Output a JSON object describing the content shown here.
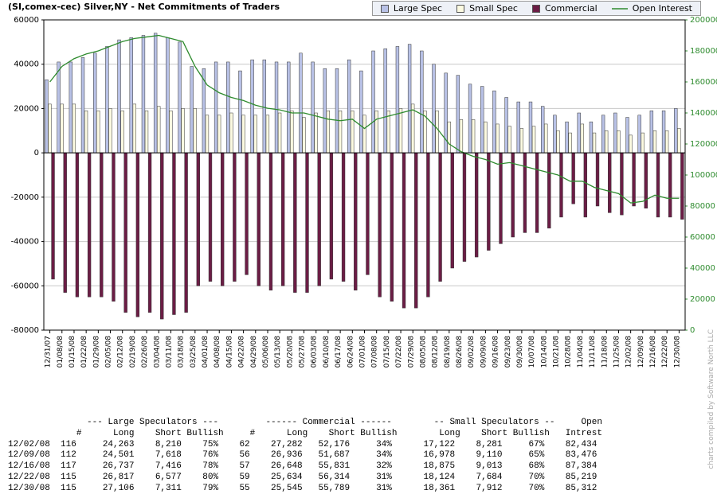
{
  "chart": {
    "title": "(SI,comex-cec) Silver,NY - Net Commitments of Traders",
    "credit": "charts compiled by\nSoftware North LLC",
    "legend_bg": "#eef1f7",
    "legend_border": "#999999",
    "plot_bg": "#ffffff",
    "plot_border": "#000000",
    "left_axis": {
      "color": "#000000",
      "min": -80000,
      "max": 60000,
      "step": 20000
    },
    "right_axis": {
      "color": "#2e8b2e",
      "min": 0,
      "max": 200000,
      "step": 20000
    },
    "bar_group_width": 0.8,
    "bar_border": "#333333",
    "grid_color": "#c8c8c8",
    "series": [
      {
        "key": "large_spec",
        "label": "Large Spec",
        "type": "bar",
        "color": "#b8c1e6",
        "axis": "left"
      },
      {
        "key": "small_spec",
        "label": "Small Spec",
        "type": "bar",
        "color": "#fcfae1",
        "axis": "left"
      },
      {
        "key": "commercial",
        "label": "Commercial",
        "type": "bar",
        "color": "#6b1d45",
        "axis": "left"
      },
      {
        "key": "open_interest",
        "label": "Open Interest",
        "type": "line",
        "color": "#2e8b2e",
        "axis": "right"
      }
    ],
    "x_labels": [
      "12/31/07",
      "01/08/08",
      "01/15/08",
      "01/22/08",
      "01/29/08",
      "02/05/08",
      "02/12/08",
      "02/19/08",
      "02/26/08",
      "03/04/08",
      "03/11/08",
      "03/18/08",
      "03/25/08",
      "04/01/08",
      "04/08/08",
      "04/15/08",
      "04/22/08",
      "04/29/08",
      "05/06/08",
      "05/13/08",
      "05/20/08",
      "05/27/08",
      "06/03/08",
      "06/10/08",
      "06/17/08",
      "06/24/08",
      "07/01/08",
      "07/08/08",
      "07/15/08",
      "07/22/08",
      "07/29/08",
      "08/05/08",
      "08/12/08",
      "08/19/08",
      "08/26/08",
      "09/02/08",
      "09/09/08",
      "09/16/08",
      "09/23/08",
      "09/30/08",
      "10/07/08",
      "10/14/08",
      "10/21/08",
      "10/28/08",
      "11/04/08",
      "11/11/08",
      "11/18/08",
      "11/25/08",
      "12/02/08",
      "12/09/08",
      "12/16/08",
      "12/22/08",
      "12/30/08"
    ],
    "x_label_fontsize": 9,
    "tick_fontsize": 10,
    "data": {
      "large_spec": [
        33000,
        41000,
        41000,
        43000,
        45000,
        48000,
        51000,
        52000,
        53000,
        54000,
        52000,
        50000,
        39000,
        38000,
        41000,
        41000,
        37000,
        42000,
        42000,
        41000,
        41000,
        45000,
        41000,
        38000,
        38000,
        42000,
        37000,
        46000,
        47000,
        48000,
        49000,
        46000,
        40000,
        36000,
        35000,
        31000,
        30000,
        28000,
        25000,
        23000,
        23000,
        21000,
        17000,
        14000,
        18000,
        14000,
        17000,
        18000,
        16000,
        17000,
        19000,
        19000,
        20000
      ],
      "small_spec": [
        22000,
        22000,
        22000,
        19000,
        19000,
        20000,
        19000,
        22000,
        19000,
        21000,
        19000,
        20000,
        20000,
        17000,
        17000,
        18000,
        17000,
        17000,
        17000,
        18000,
        19000,
        16000,
        18000,
        19000,
        19000,
        19000,
        17000,
        19000,
        19000,
        20000,
        22000,
        19000,
        19000,
        14000,
        15000,
        15000,
        14000,
        13000,
        12000,
        11000,
        12000,
        13000,
        10000,
        9000,
        13000,
        9000,
        10000,
        10000,
        8000,
        9000,
        10000,
        10000,
        11000
      ],
      "commercial": [
        -57000,
        -63000,
        -65000,
        -65000,
        -65000,
        -67000,
        -72000,
        -74000,
        -72000,
        -75000,
        -73000,
        -72000,
        -60000,
        -58000,
        -60000,
        -58000,
        -55000,
        -60000,
        -62000,
        -60000,
        -63000,
        -63000,
        -60000,
        -57000,
        -58000,
        -62000,
        -55000,
        -65000,
        -67000,
        -70000,
        -70000,
        -65000,
        -58000,
        -52000,
        -49000,
        -47000,
        -44000,
        -41000,
        -38000,
        -36000,
        -36000,
        -34000,
        -29000,
        -23000,
        -29000,
        -24000,
        -27000,
        -28000,
        -24000,
        -25000,
        -29000,
        -29000,
        -30000
      ],
      "open_interest": [
        160000,
        170000,
        175000,
        178000,
        180000,
        183000,
        186000,
        188000,
        189000,
        190000,
        188000,
        186000,
        170000,
        158000,
        153000,
        150000,
        148000,
        145000,
        143000,
        142000,
        140000,
        140000,
        138000,
        136000,
        135000,
        136000,
        130000,
        136000,
        138000,
        140000,
        142000,
        138000,
        130000,
        120000,
        115000,
        112000,
        110000,
        107000,
        108000,
        106000,
        104000,
        102000,
        100000,
        96000,
        96000,
        92000,
        90000,
        88000,
        82000,
        83000,
        87000,
        85000,
        85000
      ]
    }
  },
  "table": {
    "font": "Courier New",
    "fontsize": 11,
    "header1": [
      "",
      "--- Large Speculators ---",
      "------ Commercial ------",
      "-- Small Speculators --",
      "Open"
    ],
    "header2": [
      "",
      "#",
      "Long",
      "Short",
      "Bullish",
      "#",
      "Long",
      "Short",
      "Bullish",
      "Long",
      "Short",
      "Bullish",
      "Intrest"
    ],
    "rows": [
      {
        "date": "12/02/08",
        "ls_n": "116",
        "ls_long": "24,263",
        "ls_short": "8,210",
        "ls_bull": "75%",
        "c_n": "62",
        "c_long": "27,282",
        "c_short": "52,176",
        "c_bull": "34%",
        "ss_long": "17,122",
        "ss_short": "8,281",
        "ss_bull": "67%",
        "oi": "82,434"
      },
      {
        "date": "12/09/08",
        "ls_n": "112",
        "ls_long": "24,501",
        "ls_short": "7,618",
        "ls_bull": "76%",
        "c_n": "56",
        "c_long": "26,936",
        "c_short": "51,687",
        "c_bull": "34%",
        "ss_long": "16,978",
        "ss_short": "9,110",
        "ss_bull": "65%",
        "oi": "83,476"
      },
      {
        "date": "12/16/08",
        "ls_n": "117",
        "ls_long": "26,737",
        "ls_short": "7,416",
        "ls_bull": "78%",
        "c_n": "57",
        "c_long": "26,648",
        "c_short": "55,831",
        "c_bull": "32%",
        "ss_long": "18,875",
        "ss_short": "9,013",
        "ss_bull": "68%",
        "oi": "87,384"
      },
      {
        "date": "12/22/08",
        "ls_n": "115",
        "ls_long": "26,817",
        "ls_short": "6,577",
        "ls_bull": "80%",
        "c_n": "59",
        "c_long": "25,634",
        "c_short": "56,314",
        "c_bull": "31%",
        "ss_long": "18,124",
        "ss_short": "7,684",
        "ss_bull": "70%",
        "oi": "85,219"
      },
      {
        "date": "12/30/08",
        "ls_n": "115",
        "ls_long": "27,106",
        "ls_short": "7,311",
        "ls_bull": "79%",
        "c_n": "55",
        "c_long": "25,545",
        "c_short": "55,789",
        "c_bull": "31%",
        "ss_long": "18,361",
        "ss_short": "7,912",
        "ss_bull": "70%",
        "oi": "85,312"
      }
    ]
  }
}
